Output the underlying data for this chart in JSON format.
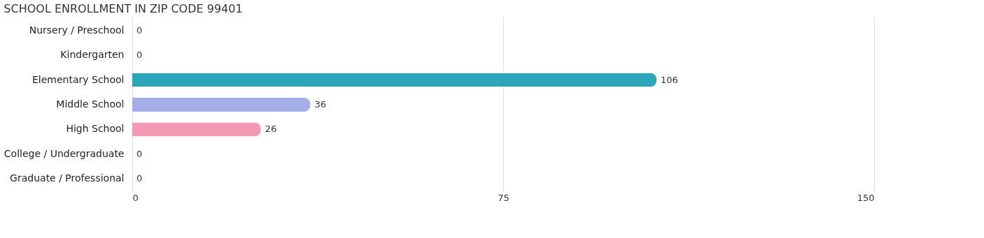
{
  "chart_data": {
    "type": "bar",
    "orientation": "horizontal",
    "title": "SCHOOL ENROLLMENT IN ZIP CODE 99401",
    "categories": [
      "Nursery / Preschool",
      "Kindergarten",
      "Elementary School",
      "Middle School",
      "High School",
      "College / Undergraduate",
      "Graduate / Professional"
    ],
    "values": [
      0,
      0,
      106,
      36,
      26,
      0,
      0
    ],
    "colors": [
      "#a8c8ec",
      "#d3b5d8",
      "#2aa6b8",
      "#a5aee8",
      "#f598b4",
      "#f9cba2",
      "#f2aaa9"
    ],
    "xlim": [
      0,
      150
    ],
    "xticks": [
      0,
      75,
      150
    ],
    "grid": "x",
    "data_labels": true
  }
}
